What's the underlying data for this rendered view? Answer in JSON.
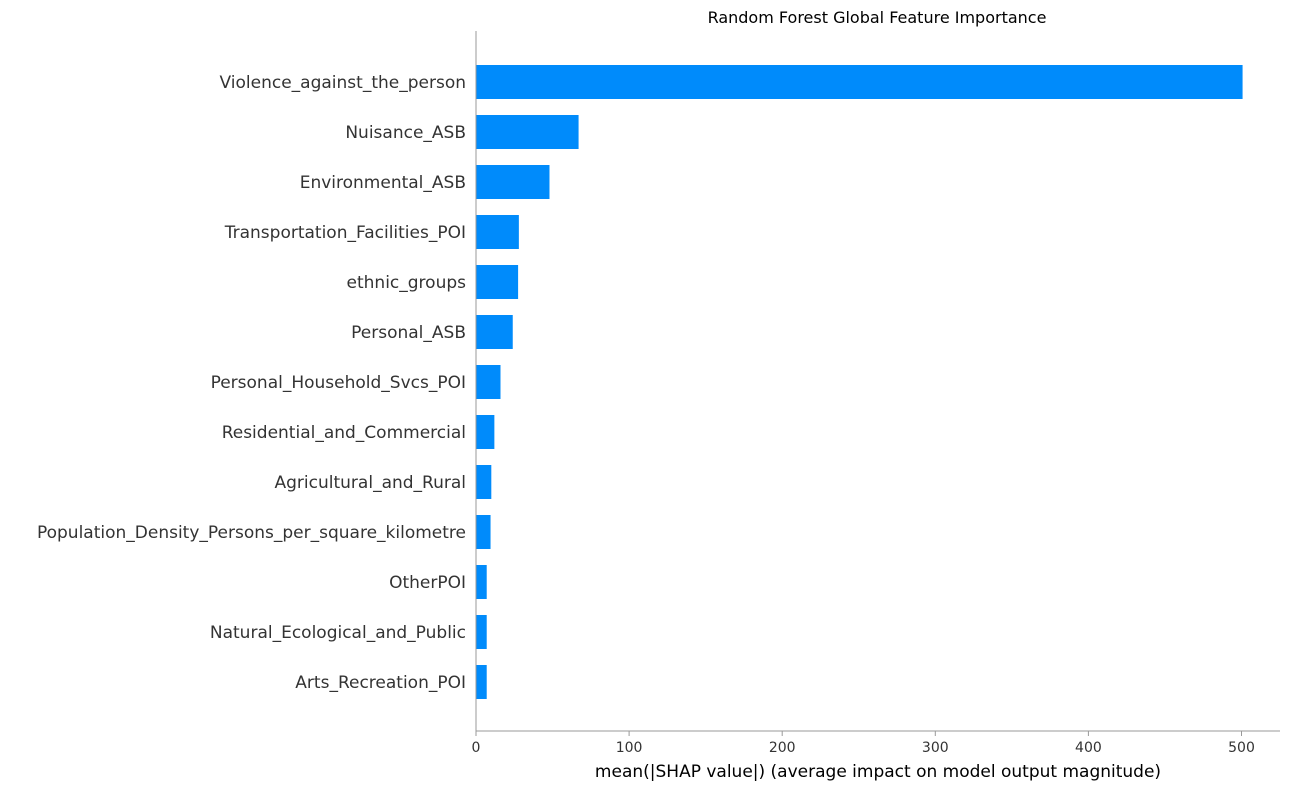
{
  "chart_data": {
    "type": "bar",
    "orientation": "horizontal",
    "title": "Random Forest Global Feature Importance",
    "xlabel": "mean(|SHAP value|) (average impact on model output magnitude)",
    "ylabel": "",
    "categories": [
      "Violence_against_the_person",
      "Nuisance_ASB",
      "Environmental_ASB",
      "Transportation_Facilities_POI",
      "ethnic_groups",
      "Personal_ASB",
      "Personal_Household_Svcs_POI",
      "Residential_and_Commercial",
      "Agricultural_and_Rural",
      "Population_Density_Persons_per_square_kilometre",
      "OtherPOI",
      "Natural_Ecological_and_Public",
      "Arts_Recreation_POI"
    ],
    "values": [
      500.7,
      67,
      48,
      28,
      27.5,
      24,
      16,
      12,
      10,
      9.5,
      7,
      7,
      7
    ],
    "xlim": [
      0,
      525
    ],
    "xticks": [
      "0",
      "100",
      "200",
      "300",
      "400",
      "500"
    ],
    "bar_color": "#008bfb",
    "grid": false,
    "legend": "none"
  }
}
